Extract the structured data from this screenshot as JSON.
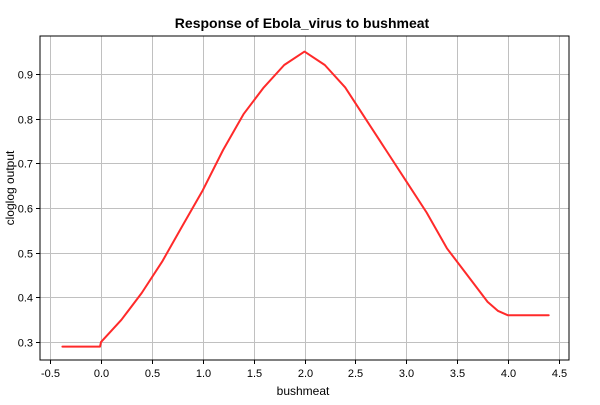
{
  "colors": {
    "background": "#ffffff",
    "grid": "#c0c0c0",
    "axis": "#000000",
    "line": "#ff2a2a"
  },
  "chart_data": {
    "type": "line",
    "title": "Response of Ebola_virus to bushmeat",
    "xlabel": "bushmeat",
    "ylabel": "cloglog output",
    "xlim": [
      -0.6,
      4.6
    ],
    "ylim": [
      0.26,
      0.985
    ],
    "grid": true,
    "x_ticks": [
      -0.5,
      0.0,
      0.5,
      1.0,
      1.5,
      2.0,
      2.5,
      3.0,
      3.5,
      4.0,
      4.5
    ],
    "x_tick_labels": [
      "-0.5",
      "0.0",
      "0.5",
      "1.0",
      "1.5",
      "2.0",
      "2.5",
      "3.0",
      "3.5",
      "4.0",
      "4.5"
    ],
    "y_ticks": [
      0.3,
      0.4,
      0.5,
      0.6,
      0.7,
      0.8,
      0.9
    ],
    "y_tick_labels": [
      "0.3",
      "0.4",
      "0.5",
      "0.6",
      "0.7",
      "0.8",
      "0.9"
    ],
    "series": [
      {
        "color": "#ff2a2a",
        "x": [
          -0.38,
          -0.01,
          0.0,
          0.2,
          0.4,
          0.6,
          0.8,
          1.0,
          1.2,
          1.4,
          1.6,
          1.8,
          2.0,
          2.2,
          2.4,
          2.6,
          2.8,
          3.0,
          3.2,
          3.4,
          3.6,
          3.8,
          3.9,
          4.0,
          4.4
        ],
        "y": [
          0.29,
          0.29,
          0.3,
          0.35,
          0.41,
          0.48,
          0.56,
          0.64,
          0.73,
          0.81,
          0.87,
          0.92,
          0.95,
          0.92,
          0.87,
          0.8,
          0.73,
          0.66,
          0.59,
          0.51,
          0.45,
          0.39,
          0.37,
          0.36,
          0.36
        ]
      }
    ]
  }
}
